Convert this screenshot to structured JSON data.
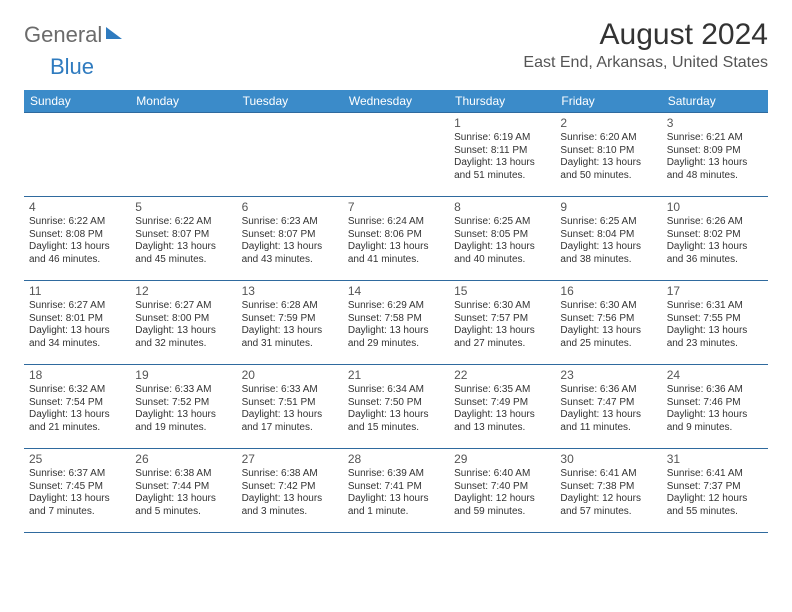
{
  "brand": {
    "general": "General",
    "blue": "Blue"
  },
  "header": {
    "month_title": "August 2024",
    "location": "East End, Arkansas, United States"
  },
  "calendar": {
    "header_bg": "#3b8bc9",
    "header_fg": "#ffffff",
    "border_color": "#2f6a9e",
    "text_color": "#333333",
    "font_size_day": 12,
    "font_size_detail": 10,
    "day_names": [
      "Sunday",
      "Monday",
      "Tuesday",
      "Wednesday",
      "Thursday",
      "Friday",
      "Saturday"
    ],
    "weeks": [
      [
        null,
        null,
        null,
        null,
        {
          "d": "1",
          "sr": "Sunrise: 6:19 AM",
          "ss": "Sunset: 8:11 PM",
          "dl": "Daylight: 13 hours and 51 minutes."
        },
        {
          "d": "2",
          "sr": "Sunrise: 6:20 AM",
          "ss": "Sunset: 8:10 PM",
          "dl": "Daylight: 13 hours and 50 minutes."
        },
        {
          "d": "3",
          "sr": "Sunrise: 6:21 AM",
          "ss": "Sunset: 8:09 PM",
          "dl": "Daylight: 13 hours and 48 minutes."
        }
      ],
      [
        {
          "d": "4",
          "sr": "Sunrise: 6:22 AM",
          "ss": "Sunset: 8:08 PM",
          "dl": "Daylight: 13 hours and 46 minutes."
        },
        {
          "d": "5",
          "sr": "Sunrise: 6:22 AM",
          "ss": "Sunset: 8:07 PM",
          "dl": "Daylight: 13 hours and 45 minutes."
        },
        {
          "d": "6",
          "sr": "Sunrise: 6:23 AM",
          "ss": "Sunset: 8:07 PM",
          "dl": "Daylight: 13 hours and 43 minutes."
        },
        {
          "d": "7",
          "sr": "Sunrise: 6:24 AM",
          "ss": "Sunset: 8:06 PM",
          "dl": "Daylight: 13 hours and 41 minutes."
        },
        {
          "d": "8",
          "sr": "Sunrise: 6:25 AM",
          "ss": "Sunset: 8:05 PM",
          "dl": "Daylight: 13 hours and 40 minutes."
        },
        {
          "d": "9",
          "sr": "Sunrise: 6:25 AM",
          "ss": "Sunset: 8:04 PM",
          "dl": "Daylight: 13 hours and 38 minutes."
        },
        {
          "d": "10",
          "sr": "Sunrise: 6:26 AM",
          "ss": "Sunset: 8:02 PM",
          "dl": "Daylight: 13 hours and 36 minutes."
        }
      ],
      [
        {
          "d": "11",
          "sr": "Sunrise: 6:27 AM",
          "ss": "Sunset: 8:01 PM",
          "dl": "Daylight: 13 hours and 34 minutes."
        },
        {
          "d": "12",
          "sr": "Sunrise: 6:27 AM",
          "ss": "Sunset: 8:00 PM",
          "dl": "Daylight: 13 hours and 32 minutes."
        },
        {
          "d": "13",
          "sr": "Sunrise: 6:28 AM",
          "ss": "Sunset: 7:59 PM",
          "dl": "Daylight: 13 hours and 31 minutes."
        },
        {
          "d": "14",
          "sr": "Sunrise: 6:29 AM",
          "ss": "Sunset: 7:58 PM",
          "dl": "Daylight: 13 hours and 29 minutes."
        },
        {
          "d": "15",
          "sr": "Sunrise: 6:30 AM",
          "ss": "Sunset: 7:57 PM",
          "dl": "Daylight: 13 hours and 27 minutes."
        },
        {
          "d": "16",
          "sr": "Sunrise: 6:30 AM",
          "ss": "Sunset: 7:56 PM",
          "dl": "Daylight: 13 hours and 25 minutes."
        },
        {
          "d": "17",
          "sr": "Sunrise: 6:31 AM",
          "ss": "Sunset: 7:55 PM",
          "dl": "Daylight: 13 hours and 23 minutes."
        }
      ],
      [
        {
          "d": "18",
          "sr": "Sunrise: 6:32 AM",
          "ss": "Sunset: 7:54 PM",
          "dl": "Daylight: 13 hours and 21 minutes."
        },
        {
          "d": "19",
          "sr": "Sunrise: 6:33 AM",
          "ss": "Sunset: 7:52 PM",
          "dl": "Daylight: 13 hours and 19 minutes."
        },
        {
          "d": "20",
          "sr": "Sunrise: 6:33 AM",
          "ss": "Sunset: 7:51 PM",
          "dl": "Daylight: 13 hours and 17 minutes."
        },
        {
          "d": "21",
          "sr": "Sunrise: 6:34 AM",
          "ss": "Sunset: 7:50 PM",
          "dl": "Daylight: 13 hours and 15 minutes."
        },
        {
          "d": "22",
          "sr": "Sunrise: 6:35 AM",
          "ss": "Sunset: 7:49 PM",
          "dl": "Daylight: 13 hours and 13 minutes."
        },
        {
          "d": "23",
          "sr": "Sunrise: 6:36 AM",
          "ss": "Sunset: 7:47 PM",
          "dl": "Daylight: 13 hours and 11 minutes."
        },
        {
          "d": "24",
          "sr": "Sunrise: 6:36 AM",
          "ss": "Sunset: 7:46 PM",
          "dl": "Daylight: 13 hours and 9 minutes."
        }
      ],
      [
        {
          "d": "25",
          "sr": "Sunrise: 6:37 AM",
          "ss": "Sunset: 7:45 PM",
          "dl": "Daylight: 13 hours and 7 minutes."
        },
        {
          "d": "26",
          "sr": "Sunrise: 6:38 AM",
          "ss": "Sunset: 7:44 PM",
          "dl": "Daylight: 13 hours and 5 minutes."
        },
        {
          "d": "27",
          "sr": "Sunrise: 6:38 AM",
          "ss": "Sunset: 7:42 PM",
          "dl": "Daylight: 13 hours and 3 minutes."
        },
        {
          "d": "28",
          "sr": "Sunrise: 6:39 AM",
          "ss": "Sunset: 7:41 PM",
          "dl": "Daylight: 13 hours and 1 minute."
        },
        {
          "d": "29",
          "sr": "Sunrise: 6:40 AM",
          "ss": "Sunset: 7:40 PM",
          "dl": "Daylight: 12 hours and 59 minutes."
        },
        {
          "d": "30",
          "sr": "Sunrise: 6:41 AM",
          "ss": "Sunset: 7:38 PM",
          "dl": "Daylight: 12 hours and 57 minutes."
        },
        {
          "d": "31",
          "sr": "Sunrise: 6:41 AM",
          "ss": "Sunset: 7:37 PM",
          "dl": "Daylight: 12 hours and 55 minutes."
        }
      ]
    ]
  }
}
